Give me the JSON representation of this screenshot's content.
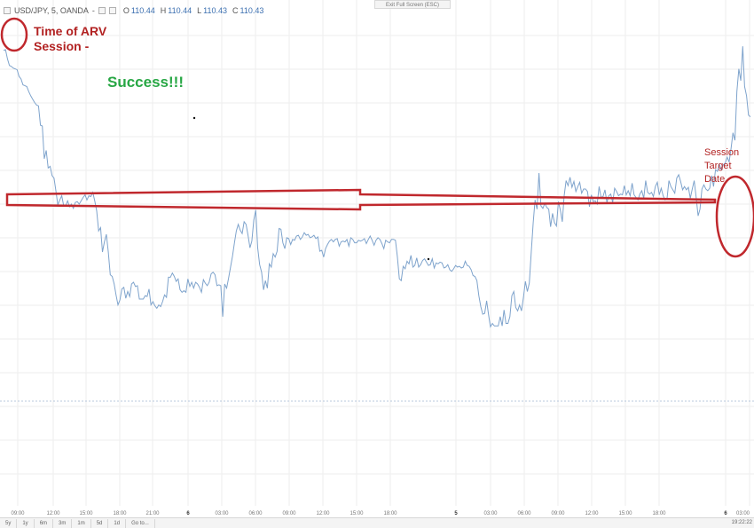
{
  "header": {
    "symbol": "USD/JPY, 5, OANDA",
    "dash": "-",
    "open_label": "O",
    "open_value": "110.44",
    "high_label": "H",
    "high_value": "110.44",
    "low_label": "L",
    "low_value": "110.43",
    "close_label": "C",
    "close_value": "110.43"
  },
  "exit_fullscreen_label": "Exit Full Screen (ESC)",
  "annotations": {
    "arv_line1": "Time of ARV",
    "arv_line2": "Session -",
    "success": "Success!!!",
    "target_line1": "Session",
    "target_line2": "Target",
    "target_line3": "Date"
  },
  "colors": {
    "price_line": "#7ea3cc",
    "annotation_red": "#c0282d",
    "success_green": "#28a745",
    "grid": "#eeeeee"
  },
  "bottom_bar": {
    "ranges": [
      "5y",
      "1y",
      "6m",
      "3m",
      "1m",
      "5d",
      "1d",
      "Go to..."
    ],
    "clock": "19:22:22"
  },
  "chart_data": {
    "type": "line",
    "title": "",
    "xlabel": "",
    "ylabel": "",
    "grid": true,
    "x_ticks": [
      "09:00",
      "12:00",
      "15:00",
      "18:00",
      "21:00",
      "6",
      "03:00",
      "06:00",
      "09:00",
      "12:00",
      "15:00",
      "18:00",
      "5",
      "03:00",
      "06:00",
      "09:00",
      "12:00",
      "15:00",
      "18:00",
      "6",
      "03:00"
    ],
    "series": [
      {
        "values": [
          540,
          541,
          530,
          522,
          521,
          519,
          518,
          517,
          509,
          506,
          499,
          498,
          497,
          491,
          486,
          482,
          478,
          475,
          474,
          451,
          450,
          411,
          421,
          400,
          402,
          391,
          388,
          373,
          356,
          362,
          367,
          355,
          355,
          361,
          354,
          357,
          352,
          359,
          360,
          357,
          361,
          365,
          368,
          362,
          367,
          366,
          371,
          361,
          349,
          325,
          329,
          300,
          312,
          321,
          300,
          273,
          271,
          262,
          249,
          237,
          243,
          256,
          258,
          245,
          253,
          247,
          262,
          264,
          259,
          260,
          244,
          244,
          244,
          248,
          247,
          256,
          237,
          241,
          236,
          233,
          237,
          235,
          241,
          249,
          246,
          270,
          270,
          275,
          271,
          265,
          268,
          255,
          252,
          254,
          252,
          268,
          259,
          264,
          257,
          264,
          262,
          258,
          252,
          267,
          263,
          260,
          264,
          274,
          276,
          273,
          260,
          261,
          260,
          223,
          262,
          257,
          269,
          282,
          295,
          311,
          325,
          333,
          326,
          322,
          336,
          333,
          320,
          305,
          313,
          338,
          350,
          305,
          285,
          276,
          255,
          266,
          257,
          286,
          282,
          298,
          294,
          301,
          328,
          327,
          311,
          304,
          317,
          316,
          309,
          315,
          314,
          319,
          320,
          315,
          318,
          323,
          320,
          321,
          317,
          318,
          320,
          316,
          318,
          301,
          302,
          294,
          304,
          309,
          313,
          315,
          312,
          315,
          316,
          307,
          312,
          313,
          312,
          315,
          307,
          317,
          315,
          311,
          311,
          314,
          313,
          314,
          316,
          310,
          315,
          319,
          314,
          308,
          314,
          317,
          315,
          310,
          304,
          314,
          312,
          311,
          315,
          315,
          314,
          294,
          268,
          266,
          283,
          280,
          289,
          286,
          296,
          282,
          284,
          293,
          282,
          285,
          290,
          292,
          288,
          284,
          285,
          292,
          281,
          287,
          286,
          288,
          287,
          281,
          282,
          285,
          279,
          277,
          280,
          284,
          282,
          283,
          281,
          282,
          289,
          284,
          283,
          279,
          272,
          271,
          266,
          248,
          235,
          226,
          227,
          242,
          225,
          211,
          215,
          212,
          212,
          212,
          223,
          212,
          231,
          215,
          215,
          223,
          248,
          253,
          234,
          230,
          237,
          230,
          246,
          265,
          253,
          263,
          300,
          335,
          362,
          351,
          394,
          355,
          352,
          358,
          353,
          351,
          330,
          346,
          335,
          331,
          360,
          350,
          336,
          367,
          385,
          379,
          389,
          377,
          384,
          372,
          378,
          383,
          370,
          375,
          375,
          372,
          354,
          368,
          360,
          361,
          357,
          378,
          365,
          366,
          374,
          359,
          367,
          369,
          359,
          376,
          372,
          367,
          369,
          368,
          379,
          368,
          373,
          367,
          382,
          368,
          365,
          362,
          369,
          373,
          364,
          385,
          371,
          369,
          371,
          366,
          378,
          383,
          368,
          376,
          367,
          362,
          364,
          385,
          378,
          374,
          370,
          388,
          392,
          384,
          374,
          378,
          374,
          377,
          364,
          375,
          385,
          365,
          343,
          351,
          375,
          380,
          375,
          373,
          376,
          391,
          378,
          398,
          396,
          404,
          398,
          404,
          406,
          413,
          407,
          423,
          442,
          433,
          491,
          518,
          504,
          545,
          497,
          486,
          463,
          461
        ]
      }
    ],
    "ylim": [
      0,
      600
    ]
  }
}
